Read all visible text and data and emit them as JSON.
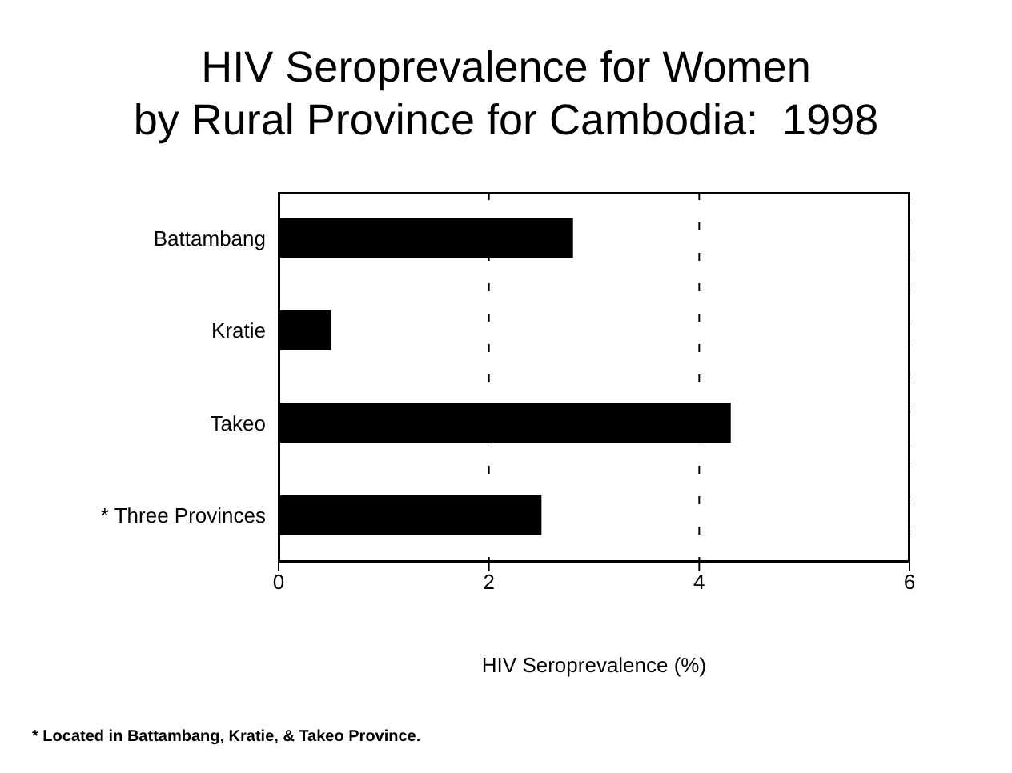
{
  "chart_data": {
    "type": "bar",
    "orientation": "horizontal",
    "title": "HIV Seroprevalence for Women\nby Rural Province for Cambodia:  1998",
    "xlabel": "HIV Seroprevalence (%)",
    "categories": [
      "Battambang",
      "Kratie",
      "Takeo",
      "* Three Provinces"
    ],
    "values": [
      2.8,
      0.5,
      4.3,
      2.5
    ],
    "color": "#000000",
    "xlim": [
      0,
      6
    ],
    "xticks": [
      0,
      2,
      4,
      6
    ],
    "grid": "x",
    "annotations": [
      "* Located in Battambang, Kratie, & Takeo Province."
    ]
  }
}
